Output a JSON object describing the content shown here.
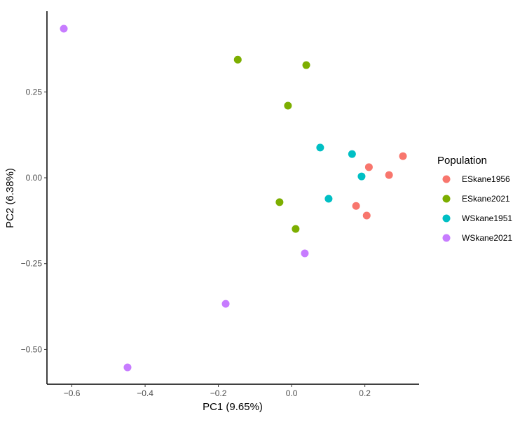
{
  "chart_data": {
    "type": "scatter",
    "xlabel": "PC1 (9.65%)",
    "ylabel": "PC2 (6.38%)",
    "xlim": [
      -0.668,
      0.348
    ],
    "ylim": [
      -0.601,
      0.485
    ],
    "xticks": [
      -0.6,
      -0.4,
      -0.2,
      0.0,
      0.2
    ],
    "xtick_labels": [
      "−0.6",
      "−0.4",
      "−0.2",
      "0.0",
      "0.2"
    ],
    "yticks": [
      0.25,
      0.0,
      -0.25,
      -0.5
    ],
    "ytick_labels": [
      "0.25",
      "0.00",
      "−0.25",
      "−0.50"
    ],
    "grid": false,
    "legend": {
      "title": "Population",
      "placement": "right"
    },
    "series": [
      {
        "name": "ESkane1956",
        "color": "#F8766D",
        "points": [
          [
            0.211,
            0.031
          ],
          [
            0.266,
            0.008
          ],
          [
            0.304,
            0.063
          ],
          [
            0.176,
            -0.082
          ],
          [
            0.205,
            -0.11
          ]
        ]
      },
      {
        "name": "ESkane2021",
        "color": "#7CAE00",
        "points": [
          [
            -0.147,
            0.344
          ],
          [
            0.04,
            0.328
          ],
          [
            -0.01,
            0.21
          ],
          [
            -0.033,
            -0.071
          ],
          [
            0.011,
            -0.149
          ]
        ]
      },
      {
        "name": "WSkane1951",
        "color": "#00BFC4",
        "points": [
          [
            0.078,
            0.088
          ],
          [
            0.165,
            0.069
          ],
          [
            0.191,
            0.004
          ],
          [
            0.101,
            -0.061
          ]
        ]
      },
      {
        "name": "WSkane2021",
        "color": "#C77CFF",
        "points": [
          [
            -0.622,
            0.434
          ],
          [
            -0.448,
            -0.552
          ],
          [
            -0.18,
            -0.367
          ],
          [
            0.036,
            -0.22
          ]
        ]
      }
    ]
  }
}
